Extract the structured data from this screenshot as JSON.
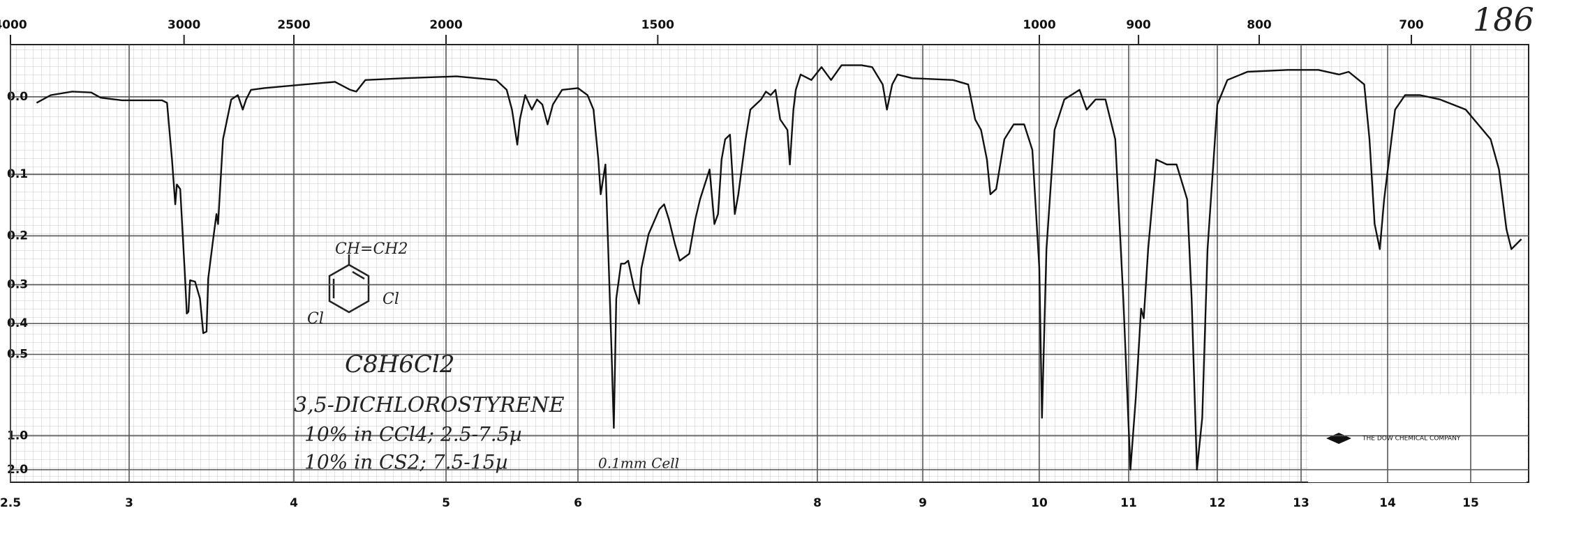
{
  "chart_data": {
    "type": "line",
    "title": "186",
    "yscale": "absorbance",
    "grid": true,
    "color": "#111111",
    "xlim": [
      2.5,
      15.7
    ],
    "ylim": [
      -0.05,
      2
    ],
    "xticks": [
      2.5,
      3,
      4,
      5,
      6,
      8,
      9,
      10,
      11,
      12,
      13,
      14,
      15
    ],
    "x2ticks": [
      4000,
      3000,
      2500,
      2000,
      1500,
      1000,
      900,
      800,
      700
    ],
    "yticks": [
      {
        "value": 0,
        "label": "0.0"
      },
      0.1,
      0.2,
      0.3,
      0.4,
      0.5,
      {
        "value": 1,
        "label": "1.0"
      },
      {
        "value": 2,
        "label": "2.0"
      }
    ],
    "annotations": [
      "CH=CH2",
      "Cl",
      "Cl",
      "C8H6Cl2",
      "3,5-DICHLOROSTYRENE",
      "10% in CCl4; 2.5-7.5µ",
      "10% in CS2; 7.5-15µ",
      "0.1mm Cell",
      "THE DOW CHEMICAL COMPANY"
    ],
    "x": [
      2.61,
      2.67,
      2.76,
      2.84,
      2.88,
      2.97,
      3.2,
      3.23,
      3.26,
      3.28,
      3.29,
      3.31,
      3.34,
      3.35,
      3.36,
      3.37,
      3.4,
      3.43,
      3.45,
      3.47,
      3.48,
      3.51,
      3.53,
      3.54,
      3.57,
      3.62,
      3.66,
      3.69,
      3.71,
      3.74,
      3.82,
      4.07,
      4.27,
      4.37,
      4.41,
      4.47,
      4.73,
      5.08,
      5.38,
      5.46,
      5.5,
      5.54,
      5.56,
      5.6,
      5.65,
      5.69,
      5.73,
      5.77,
      5.81,
      5.88,
      6.0,
      6.08,
      6.13,
      6.17,
      6.19,
      6.21,
      6.23,
      6.25,
      6.28,
      6.3,
      6.32,
      6.36,
      6.39,
      6.42,
      6.47,
      6.51,
      6.53,
      6.59,
      6.68,
      6.72,
      6.76,
      6.81,
      6.85,
      6.93,
      6.98,
      7.02,
      7.1,
      7.14,
      7.17,
      7.2,
      7.23,
      7.27,
      7.31,
      7.34,
      7.4,
      7.44,
      7.53,
      7.57,
      7.61,
      7.65,
      7.69,
      7.75,
      7.77,
      7.8,
      7.82,
      7.86,
      7.95,
      8.04,
      8.13,
      8.23,
      8.42,
      8.52,
      8.62,
      8.66,
      8.71,
      8.76,
      8.9,
      9.26,
      9.39,
      9.45,
      9.5,
      9.55,
      9.58,
      9.63,
      9.7,
      9.78,
      9.87,
      9.94,
      10.0,
      10.03,
      10.08,
      10.17,
      10.28,
      10.45,
      10.53,
      10.63,
      10.74,
      10.85,
      10.94,
      11.02,
      11.08,
      11.14,
      11.17,
      11.22,
      11.31,
      11.43,
      11.54,
      11.66,
      11.71,
      11.77,
      11.83,
      11.89,
      12.0,
      12.12,
      12.36,
      12.84,
      13.2,
      13.44,
      13.55,
      13.73,
      13.79,
      13.85,
      13.91,
      13.96,
      14.09,
      14.21,
      14.39,
      14.63,
      14.94,
      15.24,
      15.34,
      15.43,
      15.49,
      15.61
    ],
    "values": [
      0.007,
      -0.002,
      -0.006,
      -0.005,
      0.001,
      0.004,
      0.004,
      0.007,
      0.079,
      0.146,
      0.115,
      0.122,
      0.286,
      0.372,
      0.367,
      0.29,
      0.293,
      0.333,
      0.429,
      0.424,
      0.286,
      0.206,
      0.162,
      0.179,
      0.052,
      0.003,
      -0.002,
      0.015,
      0.003,
      -0.008,
      -0.01,
      -0.014,
      -0.017,
      -0.008,
      -0.006,
      -0.019,
      -0.021,
      -0.023,
      -0.019,
      -0.008,
      0.015,
      0.059,
      0.027,
      -0.002,
      0.015,
      0.003,
      0.009,
      0.033,
      0.009,
      -0.008,
      -0.01,
      -0.002,
      0.015,
      0.079,
      0.13,
      0.107,
      0.086,
      0.206,
      0.479,
      0.917,
      0.333,
      0.254,
      0.254,
      0.248,
      0.309,
      0.346,
      0.264,
      0.197,
      0.154,
      0.146,
      0.171,
      0.215,
      0.248,
      0.234,
      0.171,
      0.138,
      0.093,
      0.179,
      0.162,
      0.079,
      0.052,
      0.046,
      0.162,
      0.13,
      0.052,
      0.015,
      0.003,
      -0.006,
      -0.002,
      -0.008,
      0.027,
      0.04,
      0.086,
      0.015,
      -0.008,
      -0.025,
      -0.019,
      -0.033,
      -0.019,
      -0.035,
      -0.035,
      -0.033,
      -0.014,
      0.015,
      -0.014,
      -0.025,
      -0.021,
      -0.019,
      -0.014,
      0.027,
      0.04,
      0.079,
      0.13,
      0.122,
      0.052,
      0.033,
      0.033,
      0.066,
      0.264,
      0.83,
      0.225,
      0.04,
      0.003,
      -0.008,
      0.015,
      0.003,
      0.003,
      0.052,
      0.333,
      2,
      0.697,
      0.359,
      0.385,
      0.225,
      0.079,
      0.086,
      0.086,
      0.138,
      0.333,
      2,
      0.83,
      0.225,
      0.009,
      -0.019,
      -0.028,
      -0.03,
      -0.03,
      -0.025,
      -0.028,
      -0.014,
      0.052,
      0.179,
      0.225,
      0.138,
      0.015,
      -0.002,
      -0.002,
      0.003,
      0.015,
      0.052,
      0.093,
      0.188,
      0.225,
      0.206
    ]
  }
}
